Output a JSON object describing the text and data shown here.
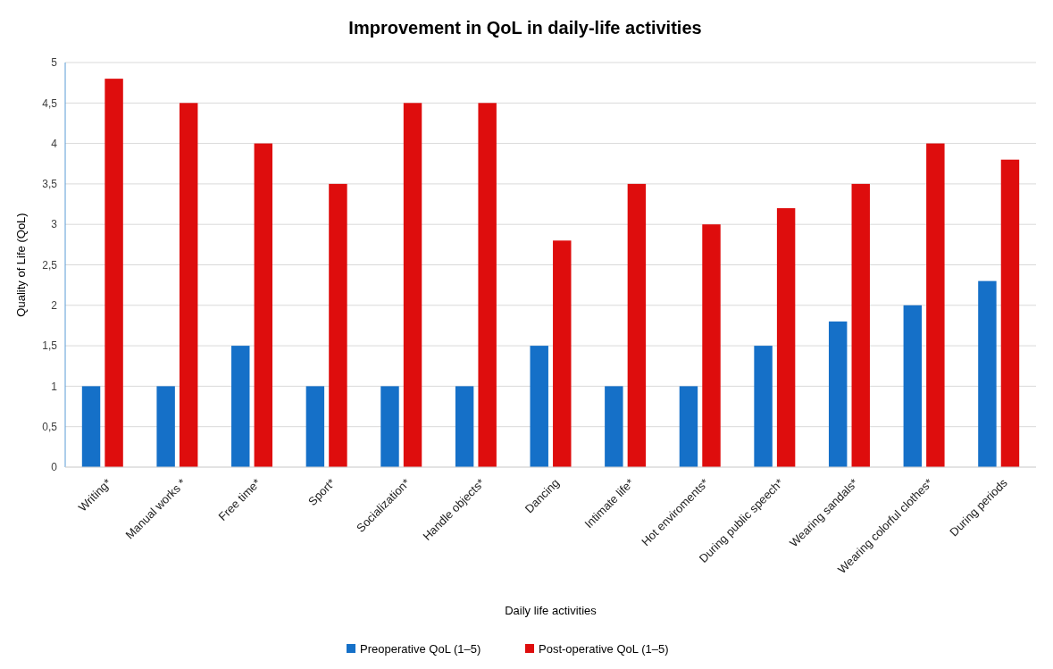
{
  "chart_data": {
    "type": "bar",
    "title": "Improvement in QoL in daily-life activities",
    "xlabel": "Daily life activities",
    "ylabel": "Quality of Life (QoL)",
    "categories": [
      "Writing*",
      "Manual works *",
      "Free time*",
      "Sport*",
      "Socialization*",
      "Handle objects*",
      "Dancing",
      "Intimate life*",
      "Hot enviroments*",
      "During public speech*",
      "Wearing sandals*",
      "Wearing colorful clothes*",
      "During periods"
    ],
    "series": [
      {
        "name": "Preoperative QoL (1–5)",
        "color": "#1570c8",
        "values": [
          1,
          1,
          1.5,
          1,
          1,
          1,
          1.5,
          1,
          1,
          1.5,
          1.8,
          2,
          2.3
        ]
      },
      {
        "name": "Post-operative QoL (1–5)",
        "color": "#de0d0d",
        "values": [
          4.8,
          4.5,
          4,
          3.5,
          4.5,
          4.5,
          2.8,
          3.5,
          3,
          3.2,
          3.5,
          4,
          3.8
        ]
      }
    ],
    "ylim": [
      0,
      5
    ],
    "yticks": [
      0,
      {
        "value": 0.5,
        "label": "0,5"
      },
      1,
      {
        "value": 1.5,
        "label": "1,5"
      },
      2,
      {
        "value": 2.5,
        "label": "2,5"
      },
      3,
      {
        "value": 3.5,
        "label": "3,5"
      },
      4,
      {
        "value": 4.5,
        "label": "4,5"
      },
      5
    ],
    "grid": "y",
    "legend": "bottom"
  }
}
